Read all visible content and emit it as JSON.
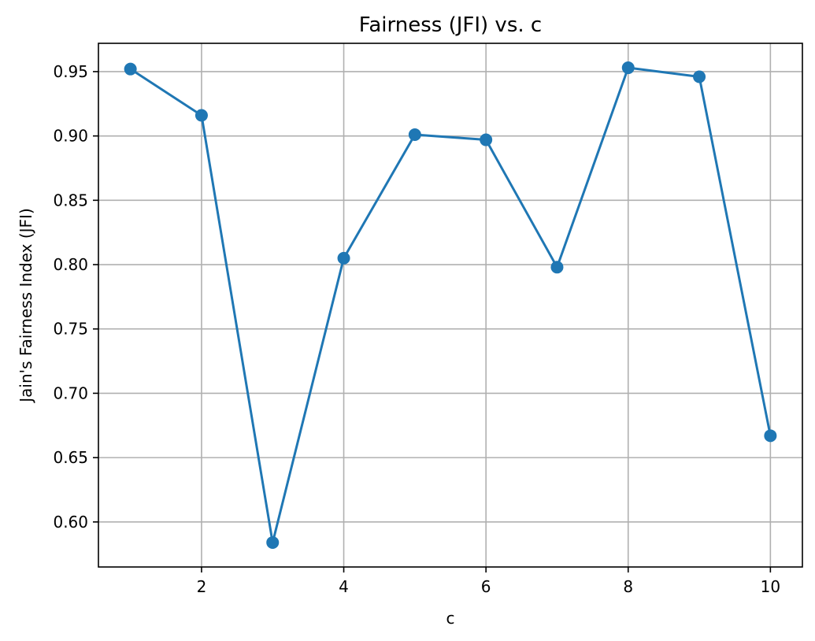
{
  "chart_data": {
    "type": "line",
    "title": "Fairness (JFI) vs. c",
    "xlabel": "c",
    "ylabel": "Jain's Fairness Index (JFI)",
    "xlim": [
      0.55,
      10.45
    ],
    "ylim": [
      0.565,
      0.972
    ],
    "xticks": [
      2,
      4,
      6,
      8,
      10
    ],
    "xtick_labels": [
      "2",
      "4",
      "6",
      "8",
      "10"
    ],
    "yticks": [
      0.6,
      0.65,
      0.7,
      0.75,
      0.8,
      0.85,
      0.9,
      0.95
    ],
    "ytick_labels": [
      "0.60",
      "0.65",
      "0.70",
      "0.75",
      "0.80",
      "0.85",
      "0.90",
      "0.95"
    ],
    "grid": true,
    "series": [
      {
        "color": "#1f77b4",
        "marker": "circle",
        "x": [
          1,
          2,
          3,
          4,
          5,
          6,
          7,
          8,
          9,
          10
        ],
        "y": [
          0.952,
          0.916,
          0.584,
          0.805,
          0.901,
          0.897,
          0.798,
          0.953,
          0.946,
          0.667
        ]
      }
    ]
  }
}
